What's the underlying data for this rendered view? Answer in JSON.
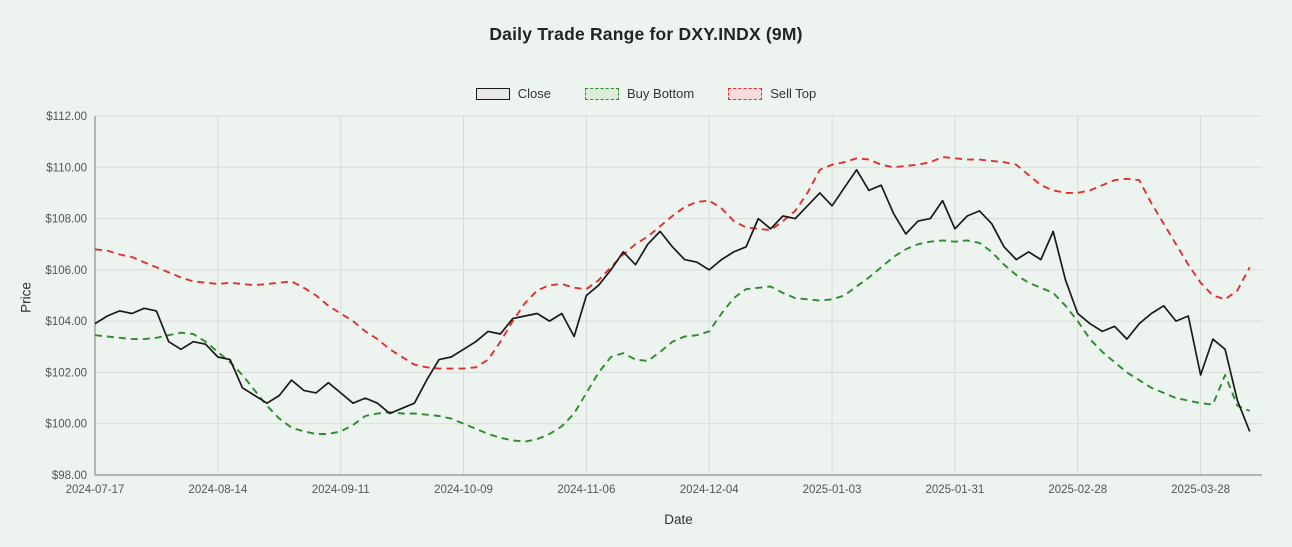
{
  "title": "Daily Trade Range for DXY.INDX (9M)",
  "axis": {
    "x_label": "Date",
    "y_label": "Price"
  },
  "colors": {
    "background": "#edf3ee",
    "grid": "#d6ddd6",
    "spine": "#8a908a",
    "tick_text": "#555555",
    "close_line": "#1a1a1a",
    "buy_bottom_line": "#2f8b2f",
    "sell_top_line": "#e03131",
    "close_swatch_fill": "#e8e8e8",
    "buy_swatch_fill": "#ddecd8",
    "sell_swatch_fill": "#f6dcdc"
  },
  "chart_data": {
    "type": "line",
    "title": "Daily Trade Range for DXY.INDX (9M)",
    "xlabel": "Date",
    "ylabel": "Price",
    "ylim": [
      98,
      112
    ],
    "x_range_days": [
      0,
      190
    ],
    "grid": true,
    "legend_position": "top-center",
    "y_ticks": [
      {
        "value": 98,
        "label": "$98.00"
      },
      {
        "value": 100,
        "label": "$100.00"
      },
      {
        "value": 102,
        "label": "$102.00"
      },
      {
        "value": 104,
        "label": "$104.00"
      },
      {
        "value": 106,
        "label": "$106.00"
      },
      {
        "value": 108,
        "label": "$108.00"
      },
      {
        "value": 110,
        "label": "$110.00"
      },
      {
        "value": 112,
        "label": "$112.00"
      }
    ],
    "x_ticks": [
      {
        "day": 0,
        "label": "2024-07-17"
      },
      {
        "day": 20,
        "label": "2024-08-14"
      },
      {
        "day": 40,
        "label": "2024-09-11"
      },
      {
        "day": 60,
        "label": "2024-10-09"
      },
      {
        "day": 80,
        "label": "2024-11-06"
      },
      {
        "day": 100,
        "label": "2024-12-04"
      },
      {
        "day": 120,
        "label": "2025-01-03"
      },
      {
        "day": 140,
        "label": "2025-01-31"
      },
      {
        "day": 160,
        "label": "2025-02-28"
      },
      {
        "day": 180,
        "label": "2025-03-28"
      }
    ],
    "x_days": [
      0,
      2,
      4,
      6,
      8,
      10,
      12,
      14,
      16,
      18,
      20,
      22,
      24,
      26,
      28,
      30,
      32,
      34,
      36,
      38,
      40,
      42,
      44,
      46,
      48,
      50,
      52,
      54,
      56,
      58,
      60,
      62,
      64,
      66,
      68,
      70,
      72,
      74,
      76,
      78,
      80,
      82,
      84,
      86,
      88,
      90,
      92,
      94,
      96,
      98,
      100,
      102,
      104,
      106,
      108,
      110,
      112,
      114,
      116,
      118,
      120,
      122,
      124,
      126,
      128,
      130,
      132,
      134,
      136,
      138,
      140,
      142,
      144,
      146,
      148,
      150,
      152,
      154,
      156,
      158,
      160,
      162,
      164,
      166,
      168,
      170,
      172,
      174,
      176,
      178,
      180,
      182,
      184,
      186,
      188
    ],
    "series": [
      {
        "name": "Close",
        "color": "#1a1a1a",
        "dash": "solid",
        "swatch_fill": "#e8e8e8",
        "values": [
          103.9,
          104.2,
          104.4,
          104.3,
          104.5,
          104.4,
          103.2,
          102.9,
          103.2,
          103.1,
          102.6,
          102.5,
          101.4,
          101.1,
          100.8,
          101.1,
          101.7,
          101.3,
          101.2,
          101.6,
          101.2,
          100.8,
          101.0,
          100.8,
          100.4,
          100.6,
          100.8,
          101.7,
          102.5,
          102.6,
          102.9,
          103.2,
          103.6,
          103.5,
          104.1,
          104.2,
          104.3,
          104.0,
          104.3,
          103.4,
          105.0,
          105.4,
          106.0,
          106.7,
          106.2,
          107.0,
          107.5,
          106.9,
          106.4,
          106.3,
          106.0,
          106.4,
          106.7,
          106.9,
          108.0,
          107.6,
          108.1,
          108.0,
          108.5,
          109.0,
          108.5,
          109.2,
          109.9,
          109.1,
          109.3,
          108.2,
          107.4,
          107.9,
          108.0,
          108.7,
          107.6,
          108.1,
          108.3,
          107.8,
          106.9,
          106.4,
          106.7,
          106.4,
          107.5,
          105.6,
          104.3,
          103.9,
          103.6,
          103.8,
          103.3,
          103.9,
          104.3,
          104.6,
          104.0,
          104.2,
          101.9,
          103.3,
          102.9,
          100.9,
          99.7
        ]
      },
      {
        "name": "Buy Bottom",
        "color": "#2f8b2f",
        "dash": "dashed",
        "swatch_fill": "#ddecd8",
        "values": [
          103.45,
          103.4,
          103.35,
          103.3,
          103.3,
          103.35,
          103.45,
          103.55,
          103.5,
          103.2,
          102.8,
          102.4,
          101.9,
          101.3,
          100.7,
          100.2,
          99.85,
          99.7,
          99.6,
          99.6,
          99.7,
          99.95,
          100.3,
          100.4,
          100.45,
          100.4,
          100.4,
          100.35,
          100.3,
          100.2,
          100.0,
          99.8,
          99.6,
          99.45,
          99.35,
          99.3,
          99.4,
          99.6,
          99.9,
          100.4,
          101.2,
          102.0,
          102.6,
          102.75,
          102.5,
          102.45,
          102.8,
          103.2,
          103.4,
          103.45,
          103.6,
          104.3,
          104.9,
          105.25,
          105.3,
          105.35,
          105.1,
          104.9,
          104.85,
          104.8,
          104.85,
          105.0,
          105.35,
          105.7,
          106.1,
          106.5,
          106.8,
          107.0,
          107.1,
          107.15,
          107.1,
          107.15,
          107.05,
          106.7,
          106.2,
          105.8,
          105.5,
          105.3,
          105.1,
          104.6,
          104.0,
          103.3,
          102.8,
          102.4,
          102.0,
          101.7,
          101.4,
          101.2,
          101.0,
          100.9,
          100.8,
          100.75,
          101.9,
          100.7,
          100.5
        ]
      },
      {
        "name": "Sell Top",
        "color": "#e03131",
        "dash": "dashed",
        "swatch_fill": "#f6dcdc",
        "values": [
          106.8,
          106.75,
          106.6,
          106.5,
          106.3,
          106.1,
          105.9,
          105.7,
          105.55,
          105.5,
          105.45,
          105.5,
          105.45,
          105.4,
          105.45,
          105.5,
          105.55,
          105.3,
          105.0,
          104.6,
          104.3,
          104.0,
          103.6,
          103.3,
          102.9,
          102.6,
          102.3,
          102.2,
          102.15,
          102.15,
          102.15,
          102.2,
          102.5,
          103.2,
          104.0,
          104.7,
          105.2,
          105.4,
          105.45,
          105.3,
          105.25,
          105.6,
          106.1,
          106.6,
          107.0,
          107.3,
          107.7,
          108.1,
          108.45,
          108.65,
          108.7,
          108.4,
          107.9,
          107.65,
          107.6,
          107.55,
          107.9,
          108.3,
          109.0,
          109.9,
          110.1,
          110.2,
          110.35,
          110.3,
          110.1,
          110.0,
          110.05,
          110.1,
          110.2,
          110.4,
          110.35,
          110.3,
          110.3,
          110.25,
          110.2,
          110.1,
          109.7,
          109.3,
          109.1,
          109.0,
          109.0,
          109.1,
          109.3,
          109.5,
          109.55,
          109.5,
          108.6,
          107.8,
          107.0,
          106.2,
          105.5,
          105.0,
          104.85,
          105.2,
          106.1
        ]
      }
    ]
  }
}
